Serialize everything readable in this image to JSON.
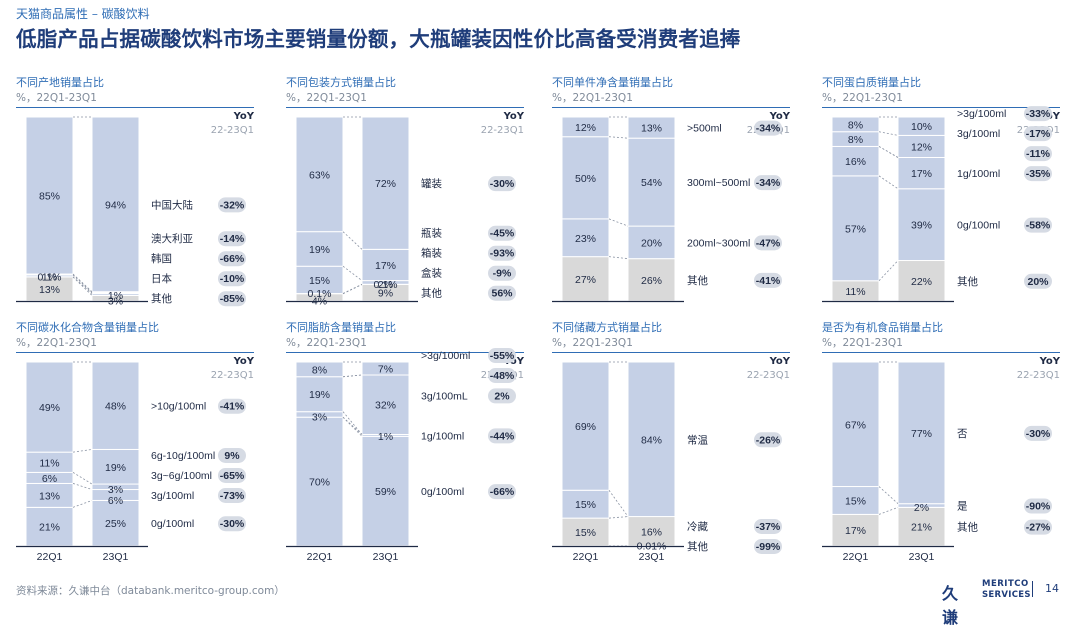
{
  "header": {
    "breadcrumb": "天猫商品属性 – 碳酸饮料",
    "title": "低脂产品占据碳酸饮料市场主要销量份额，大瓶罐装因性价比高备受消费者追捧"
  },
  "footer": {
    "source": "资料来源：久谦中台（databank.meritco-group.com）",
    "logo_main": "久谦",
    "logo_sub1": "MERITCO",
    "logo_sub2": "SERVICES",
    "page_number": "14"
  },
  "colors": {
    "bar": "#c5d0e6",
    "other": "#d9d9d9",
    "pill": "#d6dbe4",
    "accent": "#2f6db5"
  },
  "chart_data": [
    {
      "type": "bar",
      "stacked": true,
      "title": "不同产地销量占比",
      "subtitle": "%，22Q1-23Q1",
      "yoy_label": "YoY",
      "yoy_range": "22-23Q1",
      "categories": [
        "22Q1",
        "23Q1"
      ],
      "show_categories": false,
      "series": [
        {
          "name": "其他",
          "values": [
            13,
            3
          ],
          "labels": [
            "13%",
            "3%"
          ],
          "yoy": "-85%",
          "other": true
        },
        {
          "name": "日本",
          "values": [
            0.1,
            1
          ],
          "labels": [
            "0.1%",
            "1%"
          ],
          "yoy": "-10%"
        },
        {
          "name": "韩国",
          "values": [
            1,
            0.5
          ],
          "labels": [
            "1%",
            ""
          ],
          "yoy": "-66%"
        },
        {
          "name": "澳大利亚",
          "values": [
            0.5,
            0.5
          ],
          "labels": [
            "",
            ""
          ],
          "yoy": "-14%"
        },
        {
          "name": "中国大陆",
          "values": [
            85,
            94
          ],
          "labels": [
            "85%",
            "94%"
          ],
          "yoy": "-32%"
        }
      ]
    },
    {
      "type": "bar",
      "stacked": true,
      "title": "不同包装方式销量占比",
      "subtitle": "%，22Q1-23Q1",
      "yoy_label": "YoY",
      "yoy_range": "22-23Q1",
      "categories": [
        "22Q1",
        "23Q1"
      ],
      "show_categories": false,
      "series": [
        {
          "name": "其他",
          "values": [
            4,
            9
          ],
          "labels": [
            "4%",
            "9%"
          ],
          "yoy": "56%",
          "other": true
        },
        {
          "name": "盒装",
          "values": [
            0.1,
            0.1
          ],
          "labels": [
            "0.1%",
            "0.1%"
          ],
          "yoy": "-9%"
        },
        {
          "name": "箱装",
          "values": [
            15,
            2
          ],
          "labels": [
            "15%",
            "2%"
          ],
          "yoy": "-93%"
        },
        {
          "name": "瓶装",
          "values": [
            19,
            17
          ],
          "labels": [
            "19%",
            "17%"
          ],
          "yoy": "-45%"
        },
        {
          "name": "罐装",
          "values": [
            63,
            72
          ],
          "labels": [
            "63%",
            "72%"
          ],
          "yoy": "-30%"
        }
      ]
    },
    {
      "type": "bar",
      "stacked": true,
      "title": "不同单件净含量销量占比",
      "subtitle": "%，22Q1-23Q1",
      "yoy_label": "YoY",
      "yoy_range": "22-23Q1",
      "categories": [
        "22Q1",
        "23Q1"
      ],
      "show_categories": false,
      "series": [
        {
          "name": "其他",
          "values": [
            27,
            26
          ],
          "labels": [
            "27%",
            "26%"
          ],
          "yoy": "-41%",
          "other": true
        },
        {
          "name": "200ml~300ml",
          "values": [
            23,
            20
          ],
          "labels": [
            "23%",
            "20%"
          ],
          "yoy": "-47%"
        },
        {
          "name": "300ml~500ml",
          "values": [
            50,
            54
          ],
          "labels": [
            "50%",
            "54%"
          ],
          "yoy": "-34%"
        },
        {
          "name": ">500ml",
          "values": [
            12,
            13
          ],
          "labels": [
            "12%",
            "13%"
          ],
          "yoy": "-34%"
        }
      ]
    },
    {
      "type": "bar",
      "stacked": true,
      "title": "不同蛋白质销量占比",
      "subtitle": "%，22Q1-23Q1",
      "yoy_label": "YoY",
      "yoy_range": "22-23Q1",
      "categories": [
        "22Q1",
        "23Q1"
      ],
      "show_categories": false,
      "series": [
        {
          "name": "其他",
          "values": [
            11,
            22
          ],
          "labels": [
            "11%",
            "22%"
          ],
          "yoy": "20%",
          "other": true
        },
        {
          "name": "0g/100ml",
          "values": [
            57,
            39
          ],
          "labels": [
            "57%",
            "39%"
          ],
          "yoy": "-58%"
        },
        {
          "name": "1g/100ml",
          "values": [
            16,
            17
          ],
          "labels": [
            "16%",
            "17%"
          ],
          "yoy": "-35%"
        },
        {
          "name": "",
          "values": [
            0,
            0
          ],
          "labels": [
            "",
            ""
          ],
          "yoy": "-11%"
        },
        {
          "name": "3g/100ml",
          "values": [
            8,
            12
          ],
          "labels": [
            "8%",
            "12%"
          ],
          "yoy": "-17%"
        },
        {
          "name": ">3g/100ml",
          "values": [
            8,
            10
          ],
          "labels": [
            "8%",
            "10%"
          ],
          "yoy": "-33%"
        }
      ]
    },
    {
      "type": "bar",
      "stacked": true,
      "title": "不同碳水化合物含量销量占比",
      "subtitle": "%，22Q1-23Q1",
      "yoy_label": "YoY",
      "yoy_range": "22-23Q1",
      "categories": [
        "22Q1",
        "23Q1"
      ],
      "show_categories": true,
      "series": [
        {
          "name": "0g/100ml",
          "values": [
            21,
            25
          ],
          "labels": [
            "21%",
            "25%"
          ],
          "yoy": "-30%"
        },
        {
          "name": "3g/100ml",
          "values": [
            13,
            6
          ],
          "labels": [
            "13%",
            "6%"
          ],
          "yoy": "-73%"
        },
        {
          "name": "3g~6g/100ml",
          "values": [
            6,
            3
          ],
          "labels": [
            "6%",
            "3%"
          ],
          "yoy": "-65%"
        },
        {
          "name": "6g-10g/100ml",
          "values": [
            11,
            19
          ],
          "labels": [
            "11%",
            "19%"
          ],
          "yoy": "9%"
        },
        {
          "name": ">10g/100ml",
          "values": [
            49,
            48
          ],
          "labels": [
            "49%",
            "48%"
          ],
          "yoy": "-41%"
        }
      ]
    },
    {
      "type": "bar",
      "stacked": true,
      "title": "不同脂肪含量销量占比",
      "subtitle": "%，22Q1-23Q1",
      "yoy_label": "YoY",
      "yoy_range": "22-23Q1",
      "categories": [
        "22Q1",
        "23Q1"
      ],
      "show_categories": true,
      "series": [
        {
          "name": "0g/100ml",
          "values": [
            70,
            59
          ],
          "labels": [
            "70%",
            "59%"
          ],
          "yoy": "-66%"
        },
        {
          "name": "1g/100ml",
          "values": [
            0,
            1
          ],
          "labels": [
            "",
            "1%"
          ],
          "yoy": "-44%"
        },
        {
          "name": "",
          "values": [
            3,
            0
          ],
          "labels": [
            "3%",
            ""
          ],
          "yoy": ""
        },
        {
          "name": "3g/100mL",
          "values": [
            19,
            32
          ],
          "labels": [
            "19%",
            "32%"
          ],
          "yoy": "2%"
        },
        {
          "name": "",
          "values": [
            0,
            0
          ],
          "labels": [
            "",
            ""
          ],
          "yoy": "-48%"
        },
        {
          "name": ">3g/100ml",
          "values": [
            8,
            7
          ],
          "labels": [
            "8%",
            "7%"
          ],
          "yoy": "-55%"
        }
      ]
    },
    {
      "type": "bar",
      "stacked": true,
      "title": "不同储藏方式销量占比",
      "subtitle": "%，22Q1-23Q1",
      "yoy_label": "YoY",
      "yoy_range": "22-23Q1",
      "categories": [
        "22Q1",
        "23Q1"
      ],
      "show_categories": true,
      "series": [
        {
          "name": "其他",
          "values": [
            0,
            0.01
          ],
          "labels": [
            "",
            "0.01%"
          ],
          "yoy": "-99%",
          "other": true
        },
        {
          "name": "冷藏",
          "values": [
            15,
            16
          ],
          "labels": [
            "15%",
            "16%"
          ],
          "yoy": "-37%",
          "other": true
        },
        {
          "name": "",
          "values": [
            15,
            0
          ],
          "labels": [
            "15%",
            ""
          ],
          "yoy": ""
        },
        {
          "name": "常温",
          "values": [
            69,
            84
          ],
          "labels": [
            "69%",
            "84%"
          ],
          "yoy": "-26%"
        }
      ]
    },
    {
      "type": "bar",
      "stacked": true,
      "title": "是否为有机食品销量占比",
      "subtitle": "%，22Q1-23Q1",
      "yoy_label": "YoY",
      "yoy_range": "22-23Q1",
      "categories": [
        "22Q1",
        "23Q1"
      ],
      "show_categories": true,
      "series": [
        {
          "name": "其他",
          "values": [
            17,
            21
          ],
          "labels": [
            "17%",
            "21%"
          ],
          "yoy": "-27%",
          "other": true
        },
        {
          "name": "是",
          "values": [
            15,
            2
          ],
          "labels": [
            "15%",
            "2%"
          ],
          "yoy": "-90%"
        },
        {
          "name": "否",
          "values": [
            67,
            77
          ],
          "labels": [
            "67%",
            "77%"
          ],
          "yoy": "-30%"
        }
      ]
    }
  ]
}
